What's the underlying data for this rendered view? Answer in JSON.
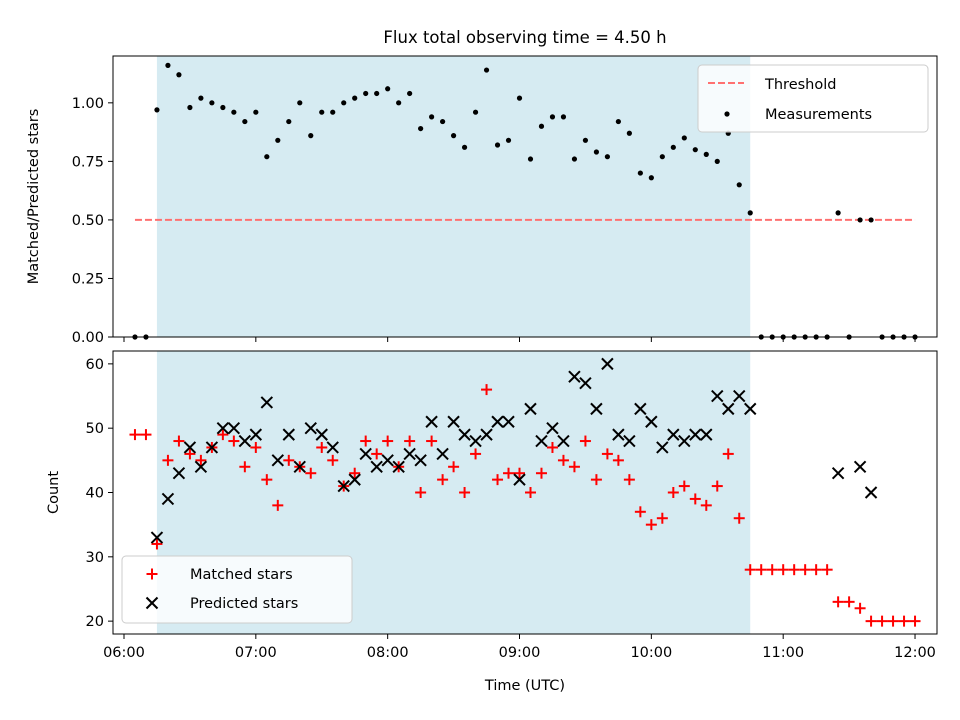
{
  "chart_data": [
    {
      "type": "scatter",
      "title": "Flux total observing time = 4.50 h",
      "ylabel": "Matched/Predicted stars",
      "xlabel": "",
      "ylim": [
        0,
        1.2
      ],
      "yticks": [
        "0.00",
        "0.25",
        "0.50",
        "0.75",
        "1.00"
      ],
      "ytick_values": [
        0,
        0.25,
        0.5,
        0.75,
        1.0
      ],
      "shaded_span": [
        "06:15",
        "10:45"
      ],
      "threshold": {
        "name": "Threshold",
        "value": 0.5,
        "x_range": [
          "06:05",
          "12:00"
        ],
        "color": "#ff7070"
      },
      "legend": {
        "placement": "upper right",
        "entries": [
          "Threshold",
          "Measurements"
        ]
      },
      "series": [
        {
          "name": "Measurements",
          "color": "#000000",
          "points": [
            [
              "06:05",
              0.0
            ],
            [
              "06:10",
              0.0
            ],
            [
              "06:15",
              0.97
            ],
            [
              "06:20",
              1.16
            ],
            [
              "06:25",
              1.12
            ],
            [
              "06:30",
              0.98
            ],
            [
              "06:35",
              1.02
            ],
            [
              "06:40",
              1.0
            ],
            [
              "06:45",
              0.98
            ],
            [
              "06:50",
              0.96
            ],
            [
              "06:55",
              0.92
            ],
            [
              "07:00",
              0.96
            ],
            [
              "07:05",
              0.77
            ],
            [
              "07:10",
              0.84
            ],
            [
              "07:15",
              0.92
            ],
            [
              "07:20",
              1.0
            ],
            [
              "07:25",
              0.86
            ],
            [
              "07:30",
              0.96
            ],
            [
              "07:35",
              0.96
            ],
            [
              "07:40",
              1.0
            ],
            [
              "07:45",
              1.02
            ],
            [
              "07:50",
              1.04
            ],
            [
              "07:55",
              1.04
            ],
            [
              "08:00",
              1.06
            ],
            [
              "08:05",
              1.0
            ],
            [
              "08:10",
              1.04
            ],
            [
              "08:15",
              0.89
            ],
            [
              "08:20",
              0.94
            ],
            [
              "08:25",
              0.92
            ],
            [
              "08:30",
              0.86
            ],
            [
              "08:35",
              0.81
            ],
            [
              "08:40",
              0.96
            ],
            [
              "08:45",
              1.14
            ],
            [
              "08:50",
              0.82
            ],
            [
              "08:55",
              0.84
            ],
            [
              "09:00",
              1.02
            ],
            [
              "09:05",
              0.76
            ],
            [
              "09:10",
              0.9
            ],
            [
              "09:15",
              0.94
            ],
            [
              "09:20",
              0.94
            ],
            [
              "09:25",
              0.76
            ],
            [
              "09:30",
              0.84
            ],
            [
              "09:35",
              0.79
            ],
            [
              "09:40",
              0.77
            ],
            [
              "09:45",
              0.92
            ],
            [
              "09:50",
              0.87
            ],
            [
              "09:55",
              0.7
            ],
            [
              "10:00",
              0.68
            ],
            [
              "10:05",
              0.77
            ],
            [
              "10:10",
              0.81
            ],
            [
              "10:15",
              0.85
            ],
            [
              "10:20",
              0.8
            ],
            [
              "10:25",
              0.78
            ],
            [
              "10:30",
              0.75
            ],
            [
              "10:35",
              0.87
            ],
            [
              "10:40",
              0.65
            ],
            [
              "10:45",
              0.53
            ],
            [
              "10:50",
              0.0
            ],
            [
              "10:55",
              0.0
            ],
            [
              "11:00",
              0.0
            ],
            [
              "11:05",
              0.0
            ],
            [
              "11:10",
              0.0
            ],
            [
              "11:15",
              0.0
            ],
            [
              "11:20",
              0.0
            ],
            [
              "11:25",
              0.53
            ],
            [
              "11:30",
              0.0
            ],
            [
              "11:35",
              0.5
            ],
            [
              "11:40",
              0.5
            ],
            [
              "11:45",
              0.0
            ],
            [
              "11:50",
              0.0
            ],
            [
              "11:55",
              0.0
            ],
            [
              "12:00",
              0.0
            ]
          ]
        }
      ]
    },
    {
      "type": "scatter",
      "title": "",
      "ylabel": "Count",
      "xlabel": "Time (UTC)",
      "ylim": [
        18,
        62
      ],
      "yticks": [
        "20",
        "30",
        "40",
        "50",
        "60"
      ],
      "ytick_values": [
        20,
        30,
        40,
        50,
        60
      ],
      "xlim": [
        "05:55",
        "12:10"
      ],
      "xticks": [
        "06:00",
        "07:00",
        "08:00",
        "09:00",
        "10:00",
        "11:00",
        "12:00"
      ],
      "shaded_span": [
        "06:15",
        "10:45"
      ],
      "legend": {
        "placement": "lower left",
        "entries": [
          "Matched stars",
          "Predicted stars"
        ]
      },
      "series": [
        {
          "name": "Matched stars",
          "color": "#ff0000",
          "marker": "plus",
          "points": [
            [
              "06:05",
              49
            ],
            [
              "06:10",
              49
            ],
            [
              "06:15",
              32
            ],
            [
              "06:20",
              45
            ],
            [
              "06:25",
              48
            ],
            [
              "06:30",
              46
            ],
            [
              "06:35",
              45
            ],
            [
              "06:40",
              47
            ],
            [
              "06:45",
              49
            ],
            [
              "06:50",
              48
            ],
            [
              "06:55",
              44
            ],
            [
              "07:00",
              47
            ],
            [
              "07:05",
              42
            ],
            [
              "07:10",
              38
            ],
            [
              "07:15",
              45
            ],
            [
              "07:20",
              44
            ],
            [
              "07:25",
              43
            ],
            [
              "07:30",
              47
            ],
            [
              "07:35",
              45
            ],
            [
              "07:40",
              41
            ],
            [
              "07:45",
              43
            ],
            [
              "07:50",
              48
            ],
            [
              "07:55",
              46
            ],
            [
              "08:00",
              48
            ],
            [
              "08:05",
              44
            ],
            [
              "08:10",
              48
            ],
            [
              "08:15",
              40
            ],
            [
              "08:20",
              48
            ],
            [
              "08:25",
              42
            ],
            [
              "08:30",
              44
            ],
            [
              "08:35",
              40
            ],
            [
              "08:40",
              46
            ],
            [
              "08:45",
              56
            ],
            [
              "08:50",
              42
            ],
            [
              "08:55",
              43
            ],
            [
              "09:00",
              43
            ],
            [
              "09:05",
              40
            ],
            [
              "09:10",
              43
            ],
            [
              "09:15",
              47
            ],
            [
              "09:20",
              45
            ],
            [
              "09:25",
              44
            ],
            [
              "09:30",
              48
            ],
            [
              "09:35",
              42
            ],
            [
              "09:40",
              46
            ],
            [
              "09:45",
              45
            ],
            [
              "09:50",
              42
            ],
            [
              "09:55",
              37
            ],
            [
              "10:00",
              35
            ],
            [
              "10:05",
              36
            ],
            [
              "10:10",
              40
            ],
            [
              "10:15",
              41
            ],
            [
              "10:20",
              39
            ],
            [
              "10:25",
              38
            ],
            [
              "10:30",
              41
            ],
            [
              "10:35",
              46
            ],
            [
              "10:40",
              36
            ],
            [
              "10:45",
              28
            ],
            [
              "10:50",
              28
            ],
            [
              "10:55",
              28
            ],
            [
              "11:00",
              28
            ],
            [
              "11:05",
              28
            ],
            [
              "11:10",
              28
            ],
            [
              "11:15",
              28
            ],
            [
              "11:20",
              28
            ],
            [
              "11:25",
              23
            ],
            [
              "11:30",
              23
            ],
            [
              "11:35",
              22
            ],
            [
              "11:40",
              20
            ],
            [
              "11:45",
              20
            ],
            [
              "11:50",
              20
            ],
            [
              "11:55",
              20
            ],
            [
              "12:00",
              20
            ]
          ]
        },
        {
          "name": "Predicted stars",
          "color": "#000000",
          "marker": "x",
          "points": [
            [
              "06:15",
              33
            ],
            [
              "06:20",
              39
            ],
            [
              "06:25",
              43
            ],
            [
              "06:30",
              47
            ],
            [
              "06:35",
              44
            ],
            [
              "06:40",
              47
            ],
            [
              "06:45",
              50
            ],
            [
              "06:50",
              50
            ],
            [
              "06:55",
              48
            ],
            [
              "07:00",
              49
            ],
            [
              "07:05",
              54
            ],
            [
              "07:10",
              45
            ],
            [
              "07:15",
              49
            ],
            [
              "07:20",
              44
            ],
            [
              "07:25",
              50
            ],
            [
              "07:30",
              49
            ],
            [
              "07:35",
              47
            ],
            [
              "07:40",
              41
            ],
            [
              "07:45",
              42
            ],
            [
              "07:50",
              46
            ],
            [
              "07:55",
              44
            ],
            [
              "08:00",
              45
            ],
            [
              "08:05",
              44
            ],
            [
              "08:10",
              46
            ],
            [
              "08:15",
              45
            ],
            [
              "08:20",
              51
            ],
            [
              "08:25",
              46
            ],
            [
              "08:30",
              51
            ],
            [
              "08:35",
              49
            ],
            [
              "08:40",
              48
            ],
            [
              "08:45",
              49
            ],
            [
              "08:50",
              51
            ],
            [
              "08:55",
              51
            ],
            [
              "09:00",
              42
            ],
            [
              "09:05",
              53
            ],
            [
              "09:10",
              48
            ],
            [
              "09:15",
              50
            ],
            [
              "09:20",
              48
            ],
            [
              "09:25",
              58
            ],
            [
              "09:30",
              57
            ],
            [
              "09:35",
              53
            ],
            [
              "09:40",
              60
            ],
            [
              "09:45",
              49
            ],
            [
              "09:50",
              48
            ],
            [
              "09:55",
              53
            ],
            [
              "10:00",
              51
            ],
            [
              "10:05",
              47
            ],
            [
              "10:10",
              49
            ],
            [
              "10:15",
              48
            ],
            [
              "10:20",
              49
            ],
            [
              "10:25",
              49
            ],
            [
              "10:30",
              55
            ],
            [
              "10:35",
              53
            ],
            [
              "10:40",
              55
            ],
            [
              "10:45",
              53
            ],
            [
              "11:25",
              43
            ],
            [
              "11:35",
              44
            ],
            [
              "11:40",
              40
            ]
          ]
        }
      ]
    }
  ]
}
